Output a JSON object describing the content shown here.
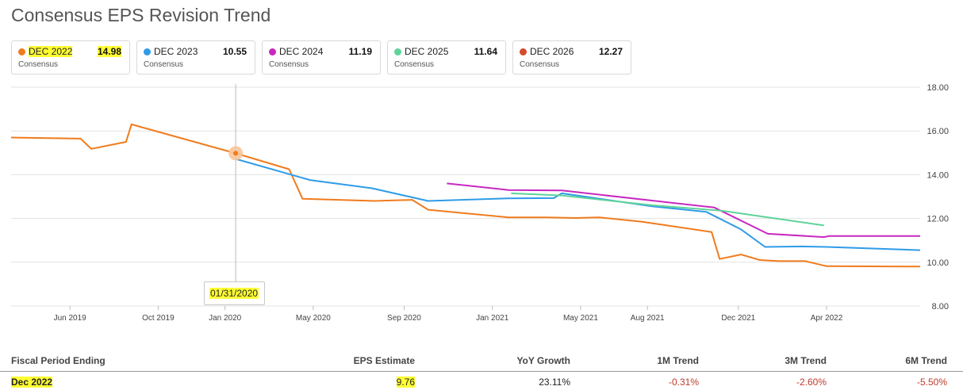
{
  "page_title": "Consensus EPS Revision Trend",
  "legend": [
    {
      "label": "DEC 2022",
      "value": "14.98",
      "sub": "Consensus",
      "color": "#f07b1d"
    },
    {
      "label": "DEC 2023",
      "value": "10.55",
      "sub": "Consensus",
      "color": "#2f9be8"
    },
    {
      "label": "DEC 2024",
      "value": "11.19",
      "sub": "Consensus",
      "color": "#c728c0"
    },
    {
      "label": "DEC 2025",
      "value": "11.64",
      "sub": "Consensus",
      "color": "#5fd39a"
    },
    {
      "label": "DEC 2026",
      "value": "12.27",
      "sub": "Consensus",
      "color": "#d44a2c"
    }
  ],
  "tooltip": {
    "date": "01/31/2020"
  },
  "table": {
    "headers": [
      "Fiscal Period Ending",
      "EPS Estimate",
      "YoY Growth",
      "1M Trend",
      "3M Trend",
      "6M Trend"
    ],
    "row": {
      "period": "Dec 2022",
      "eps": "9.76",
      "yoy": "23.11%",
      "m1": "-0.31%",
      "m3": "-2.60%",
      "m6": "-5.50%"
    }
  },
  "chart_data": {
    "type": "line",
    "title": "Consensus EPS Revision Trend",
    "xlabel": "",
    "ylabel": "",
    "ylim": [
      8,
      18
    ],
    "xlim": [
      2019.2,
      2022.6
    ],
    "yticks": [
      "8.00",
      "10.00",
      "12.00",
      "14.00",
      "16.00",
      "18.00"
    ],
    "xticks": [
      {
        "label": "Jun 2019",
        "x": 2019.42
      },
      {
        "label": "Oct 2019",
        "x": 2019.75
      },
      {
        "label": "Jan 2020",
        "x": 2020.0
      },
      {
        "label": "May 2020",
        "x": 2020.33
      },
      {
        "label": "Sep 2020",
        "x": 2020.67
      },
      {
        "label": "Jan 2021",
        "x": 2021.0
      },
      {
        "label": "May 2021",
        "x": 2021.33
      },
      {
        "label": "Aug 2021",
        "x": 2021.58
      },
      {
        "label": "Dec 2021",
        "x": 2021.92
      },
      {
        "label": "Apr 2022",
        "x": 2022.25
      }
    ],
    "highlight": {
      "x": 2020.04,
      "y": 14.98
    },
    "series": [
      {
        "name": "DEC 2022",
        "color": "#f07b1d",
        "x": [
          2019.2,
          2019.46,
          2019.5,
          2019.63,
          2019.65,
          2020.04,
          2020.24,
          2020.29,
          2020.56,
          2020.7,
          2020.76,
          2021.06,
          2021.2,
          2021.31,
          2021.4,
          2021.56,
          2021.82,
          2021.85,
          2021.93,
          2022.0,
          2022.07,
          2022.17,
          2022.25,
          2022.6
        ],
        "y": [
          15.7,
          15.65,
          15.18,
          15.5,
          16.3,
          14.98,
          14.25,
          12.9,
          12.8,
          12.85,
          12.4,
          12.05,
          12.05,
          12.02,
          12.05,
          11.85,
          11.38,
          10.15,
          10.35,
          10.1,
          10.05,
          10.05,
          9.82,
          9.8
        ]
      },
      {
        "name": "DEC 2023",
        "color": "#2f9be8",
        "x": [
          2020.04,
          2020.32,
          2020.55,
          2020.76,
          2021.06,
          2021.23,
          2021.26,
          2021.6,
          2021.8,
          2021.93,
          2022.02,
          2022.16,
          2022.25,
          2022.6
        ],
        "y": [
          14.72,
          13.75,
          13.38,
          12.8,
          12.92,
          12.93,
          13.15,
          12.55,
          12.3,
          11.5,
          10.7,
          10.72,
          10.7,
          10.55
        ]
      },
      {
        "name": "DEC 2024",
        "color": "#c728c0",
        "x": [
          2020.83,
          2021.06,
          2021.26,
          2021.83,
          2022.03,
          2022.24,
          2022.26,
          2022.6
        ],
        "y": [
          13.6,
          13.3,
          13.28,
          12.5,
          11.3,
          11.15,
          11.2,
          11.2
        ]
      },
      {
        "name": "DEC 2025",
        "color": "#5fd39a",
        "x": [
          2021.07,
          2021.26,
          2021.6,
          2021.86,
          2022.0,
          2022.24
        ],
        "y": [
          13.15,
          13.05,
          12.6,
          12.35,
          12.1,
          11.68
        ]
      }
    ]
  }
}
